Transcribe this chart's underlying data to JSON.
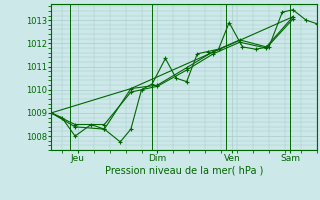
{
  "background_color": "#cce8e8",
  "grid_color": "#aacccc",
  "line_color": "#006600",
  "title": "Pression niveau de la mer( hPa )",
  "ylim": [
    1007.4,
    1013.7
  ],
  "yticks": [
    1008,
    1009,
    1010,
    1011,
    1012,
    1013
  ],
  "xlim": [
    0,
    1.0
  ],
  "day_positions": [
    0.1,
    0.4,
    0.68,
    0.9
  ],
  "day_labels": [
    "Jeu",
    "Dim",
    "Ven",
    "Sam"
  ],
  "vline_positions": [
    0.07,
    0.38,
    0.66,
    0.9
  ],
  "series1": {
    "x": [
      0.0,
      0.04,
      0.09,
      0.15,
      0.2,
      0.26,
      0.3,
      0.34,
      0.38,
      0.43,
      0.47,
      0.51,
      0.55,
      0.59,
      0.63,
      0.67,
      0.72,
      0.77,
      0.82,
      0.87,
      0.91,
      0.96,
      1.0
    ],
    "y": [
      1009.0,
      1008.8,
      1008.0,
      1008.5,
      1008.3,
      1007.75,
      1008.3,
      1010.0,
      1010.25,
      1011.35,
      1010.5,
      1010.35,
      1011.55,
      1011.65,
      1011.75,
      1012.9,
      1011.85,
      1011.75,
      1011.85,
      1013.35,
      1013.45,
      1013.0,
      1012.85
    ]
  },
  "series2": {
    "x": [
      0.0,
      0.09,
      0.2,
      0.3,
      0.4,
      0.51,
      0.61,
      0.71,
      0.81,
      0.91
    ],
    "y": [
      1009.0,
      1008.5,
      1008.5,
      1009.9,
      1010.15,
      1010.85,
      1011.55,
      1012.05,
      1011.8,
      1013.05
    ]
  },
  "series3": {
    "x": [
      0.0,
      0.09,
      0.2,
      0.3,
      0.4,
      0.51,
      0.61,
      0.71,
      0.81,
      0.91
    ],
    "y": [
      1009.0,
      1008.4,
      1008.3,
      1010.05,
      1010.2,
      1010.95,
      1011.65,
      1012.15,
      1011.85,
      1013.15
    ]
  },
  "series4": {
    "x": [
      0.0,
      0.3,
      0.91
    ],
    "y": [
      1009.0,
      1010.05,
      1013.15
    ]
  }
}
